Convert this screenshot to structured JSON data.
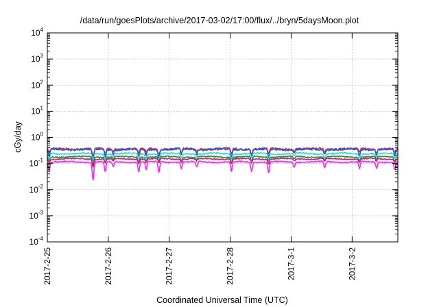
{
  "chart_data": {
    "type": "line",
    "title": "/data/run/goesPlots/archive/2017-03-02/17:00/flux/../bryn/5daysMoon.plot",
    "xlabel": "Coordinated Universal Time (UTC)",
    "ylabel": "cGy/day",
    "yscale": "log",
    "ylim_exp": [
      -4,
      4
    ],
    "y_ticks": [
      {
        "base": "10",
        "exp": "-4"
      },
      {
        "base": "10",
        "exp": "-3"
      },
      {
        "base": "10",
        "exp": "-2"
      },
      {
        "base": "10",
        "exp": "-1"
      },
      {
        "base": "10",
        "exp": "0"
      },
      {
        "base": "10",
        "exp": "1"
      },
      {
        "base": "10",
        "exp": "2"
      },
      {
        "base": "10",
        "exp": "3"
      },
      {
        "base": "10",
        "exp": "4"
      }
    ],
    "xlim_days": [
      0,
      5.75
    ],
    "x_ticks": [
      {
        "label": "2017-2-25",
        "day": 0
      },
      {
        "label": "2017-2-26",
        "day": 1
      },
      {
        "label": "2017-2-27",
        "day": 2
      },
      {
        "label": "2017-2-28",
        "day": 3
      },
      {
        "label": "2017-3-1",
        "day": 4
      },
      {
        "label": "2017-3-2",
        "day": 5
      }
    ],
    "grid": true,
    "legend": "none",
    "dips": [
      {
        "day": 0.03,
        "depth": 0.5
      },
      {
        "day": 0.75,
        "depth": 1.0
      },
      {
        "day": 0.95,
        "depth": 0.55
      },
      {
        "day": 1.08,
        "depth": 0.3
      },
      {
        "day": 1.5,
        "depth": 0.55
      },
      {
        "day": 1.62,
        "depth": 0.45
      },
      {
        "day": 1.83,
        "depth": 0.6
      },
      {
        "day": 2.2,
        "depth": 0.35
      },
      {
        "day": 2.45,
        "depth": 0.3
      },
      {
        "day": 3.02,
        "depth": 0.55
      },
      {
        "day": 3.35,
        "depth": 0.5
      },
      {
        "day": 3.63,
        "depth": 0.6
      },
      {
        "day": 4.05,
        "depth": 0.3
      },
      {
        "day": 4.55,
        "depth": 0.35
      },
      {
        "day": 5.12,
        "depth": 0.4
      },
      {
        "day": 5.4,
        "depth": 0.35
      },
      {
        "day": 5.7,
        "depth": 0.45
      }
    ],
    "series": [
      {
        "color": "#e3242b",
        "base": 0.36,
        "noise": 0.035,
        "dipScale": 0.35,
        "level": 0.93
      },
      {
        "color": "#3355dd",
        "base": 0.35,
        "noise": 0.04,
        "dipScale": 0.55,
        "level": 0.9
      },
      {
        "color": "#33ddcc",
        "base": 0.24,
        "noise": 0.025,
        "dipScale": 0.4,
        "level": 0.85
      },
      {
        "color": "#2e8b2e",
        "base": 0.18,
        "noise": 0.02,
        "dipScale": 0.35,
        "level": 0.8
      },
      {
        "color": "#cc1a88",
        "base": 0.15,
        "noise": 0.02,
        "dipScale": 0.3,
        "level": 0.75
      },
      {
        "color": "#ff22ff",
        "base": 0.115,
        "noise": 0.02,
        "dipScale": 0.7,
        "level": 0.7
      }
    ]
  }
}
